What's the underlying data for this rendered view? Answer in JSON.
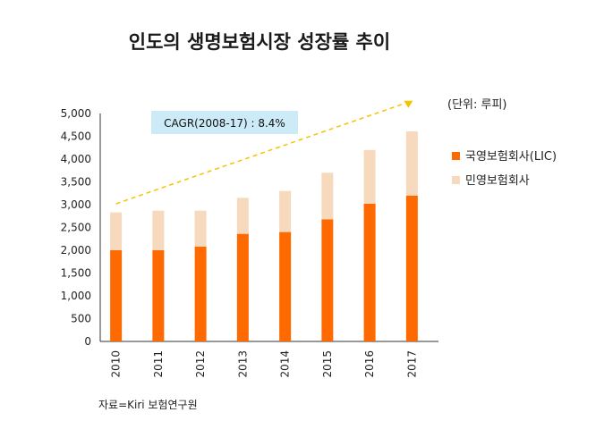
{
  "title": "인도의 생명보험시장 성장률 추이",
  "unit": "(단위: 루피)",
  "source": "자료=Kiri 보험연구원",
  "annotation": "CAGR(2008-17) : 8.4%",
  "colors": {
    "public": "#ff6a00",
    "private": "#f7d9bd",
    "trend": "#f5c400",
    "annotation_bg": "#cdeaf7"
  },
  "chart_data": {
    "type": "bar",
    "stacked": true,
    "categories": [
      "2010",
      "2011",
      "2012",
      "2013",
      "2014",
      "2015",
      "2016",
      "2017"
    ],
    "series": [
      {
        "name": "국영보험회사(LIC)",
        "values": [
          2000,
          2000,
          2080,
          2360,
          2400,
          2680,
          3020,
          3200
        ]
      },
      {
        "name": "민영보험회사",
        "values": [
          830,
          870,
          790,
          790,
          900,
          1020,
          1180,
          1410
        ]
      }
    ],
    "yticks": [
      "0",
      "500",
      "1,000",
      "1,500",
      "2,000",
      "2,500",
      "3,000",
      "3,500",
      "4,000",
      "4,500",
      "5,000"
    ],
    "ylim": [
      0,
      5000
    ],
    "trend": {
      "from": [
        "2010",
        3020
      ],
      "to": [
        "2017",
        5300
      ]
    },
    "legend_position": "right",
    "grid": false
  }
}
